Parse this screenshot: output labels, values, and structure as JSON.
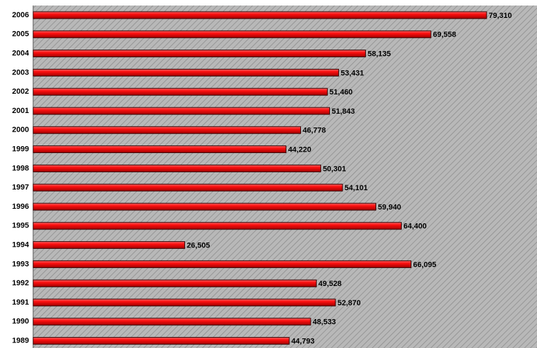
{
  "chart_data": {
    "type": "bar",
    "orientation": "horizontal",
    "color": "#e00000",
    "categories": [
      "2006",
      "2005",
      "2004",
      "2003",
      "2002",
      "2001",
      "2000",
      "1999",
      "1998",
      "1997",
      "1996",
      "1995",
      "1994",
      "1993",
      "1992",
      "1991",
      "1990",
      "1989"
    ],
    "values": [
      79310,
      69558,
      58135,
      53431,
      51460,
      51843,
      46778,
      44220,
      50301,
      54101,
      59940,
      64400,
      26505,
      66095,
      49528,
      52870,
      48533,
      44793
    ],
    "value_labels": [
      "79,310",
      "69,558",
      "58,135",
      "53,431",
      "51,460",
      "51,843",
      "46,778",
      "44,220",
      "50,301",
      "54,101",
      "59,940",
      "64,400",
      "26,505",
      "66,095",
      "49,528",
      "52,870",
      "48,533",
      "44,793"
    ]
  }
}
